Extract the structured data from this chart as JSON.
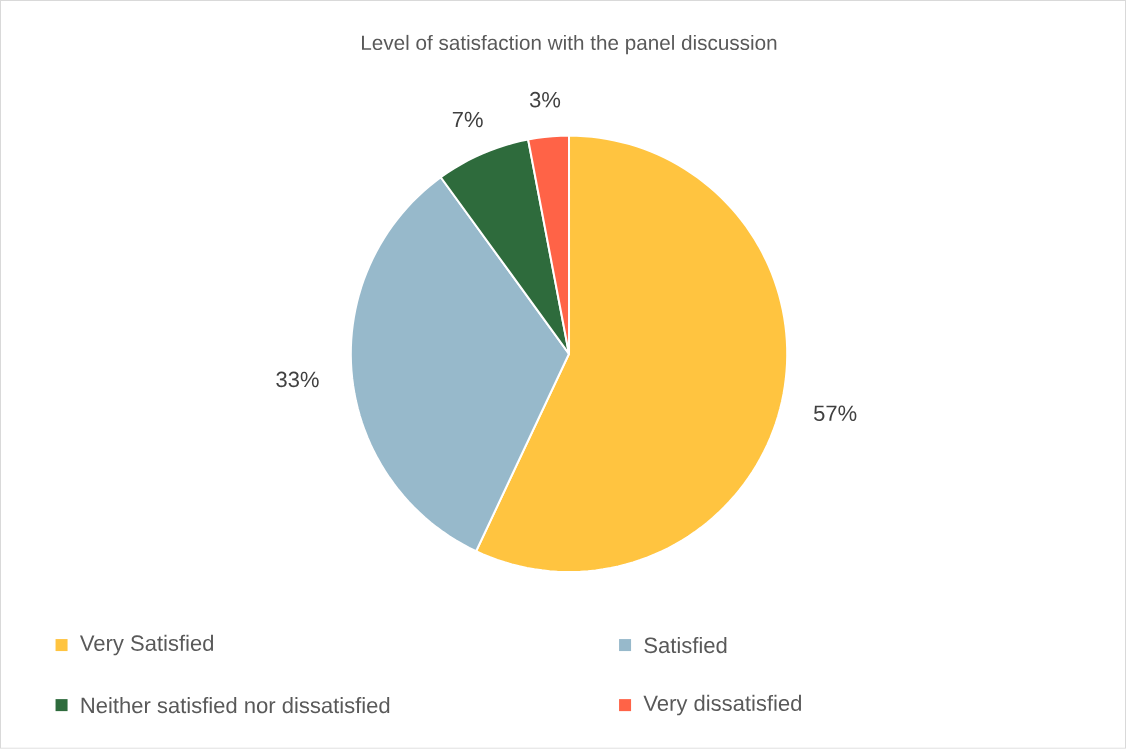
{
  "chart_data": {
    "type": "pie",
    "title": "Level of satisfaction with the panel discussion",
    "categories": [
      "Very Satisfied",
      "Satisfied",
      "Neither satisfied nor dissatisfied",
      "Very dissatisfied"
    ],
    "values": [
      57,
      33,
      7,
      3
    ],
    "colors": [
      "#ffc440",
      "#97b9cb",
      "#2e6b3c",
      "#ff6347"
    ],
    "value_labels": [
      "57%",
      "33%",
      "7%",
      "3%"
    ],
    "legend": "bottom"
  }
}
